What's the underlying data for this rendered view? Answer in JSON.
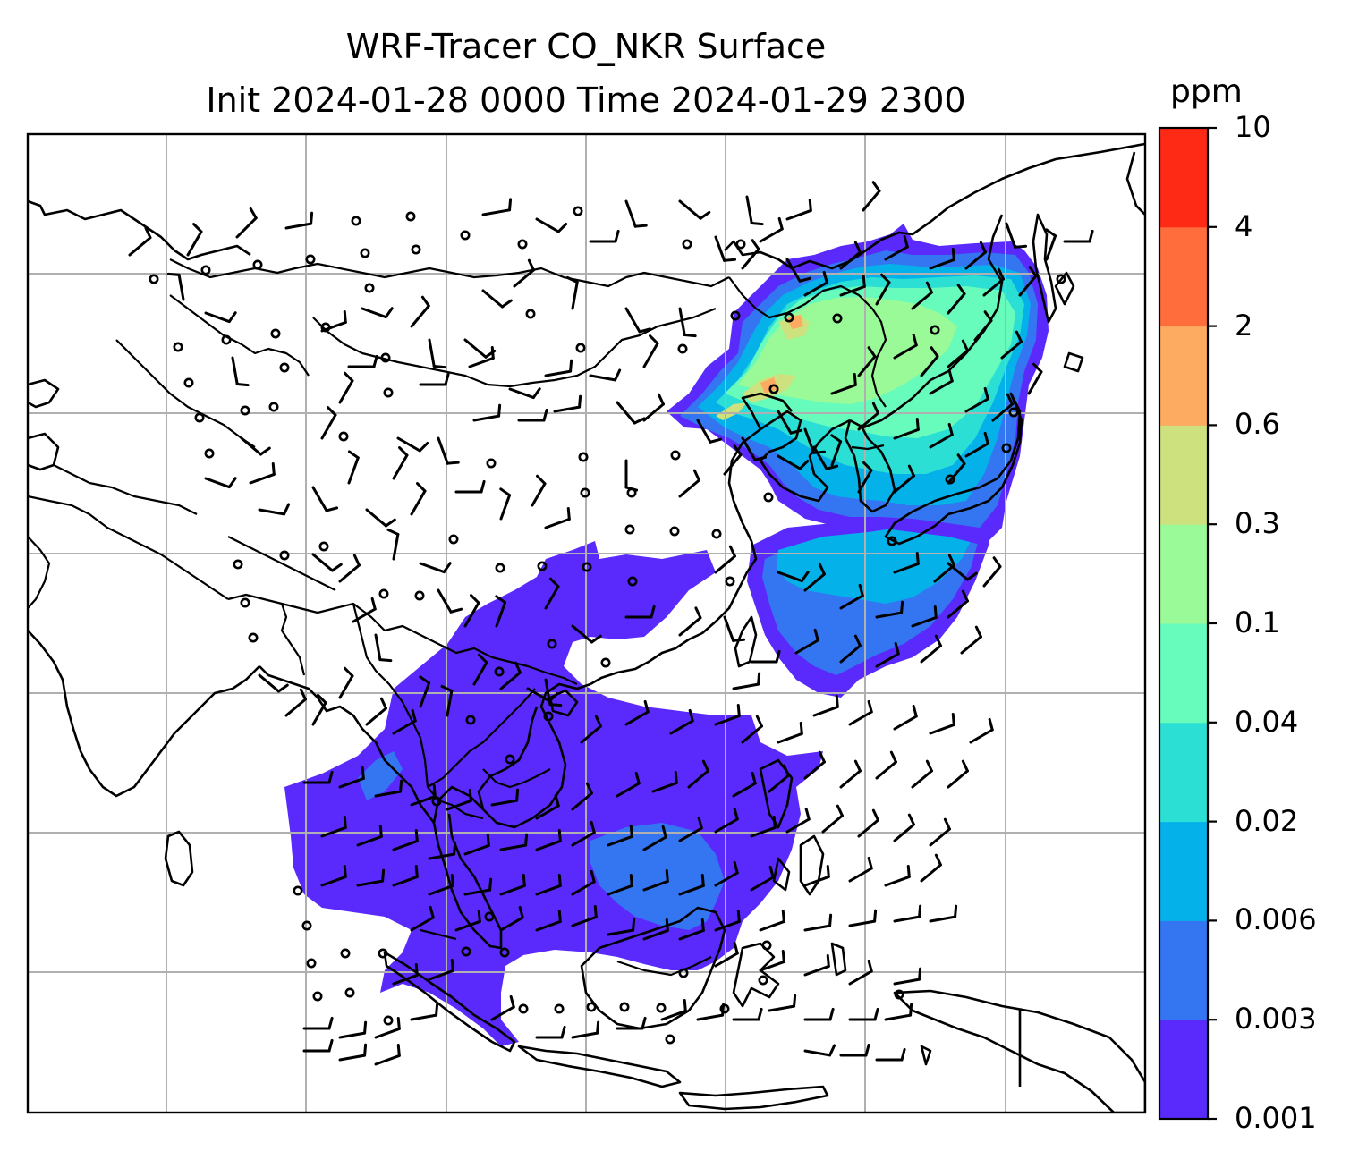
{
  "title": {
    "line1": "WRF-Tracer CO_NKR Surface",
    "line2": "Init 2024-01-28 0000 Time 2024-01-29 2300"
  },
  "colorbar": {
    "unit": "ppm",
    "levels": [
      "0.001",
      "0.003",
      "0.006",
      "0.02",
      "0.04",
      "0.1",
      "0.3",
      "0.6",
      "2",
      "4",
      "10"
    ],
    "colors": [
      "#5a2afc",
      "#3476f2",
      "#05b1e9",
      "#2bdfd4",
      "#67fbbc",
      "#9bfa98",
      "#cde17f",
      "#fdab61",
      "#ff6d3c",
      "#ff2a16"
    ]
  },
  "map": {
    "gridlines": true,
    "coastlines": true,
    "country_borders": true,
    "wind_barbs": true,
    "calm_markers": true,
    "plume_regions": [
      {
        "name": "northeast-china-korea-japan",
        "max_level": "2"
      },
      {
        "name": "east-china-sea",
        "max_level": "0.02"
      },
      {
        "name": "southeast-asia",
        "max_level": "0.003"
      }
    ]
  }
}
